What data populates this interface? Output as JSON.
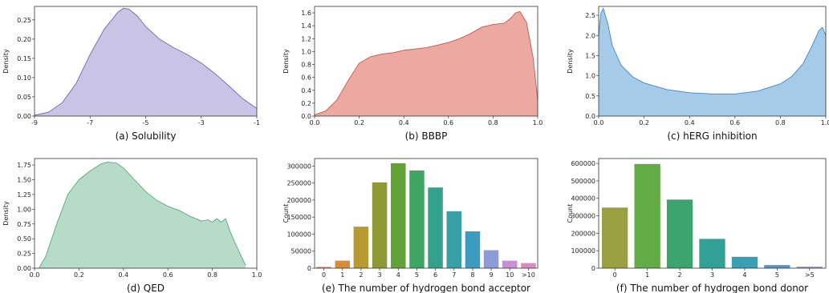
{
  "chart_data": [
    {
      "type": "area",
      "caption": "(a) Solubility",
      "ylabel": "Density",
      "xlim": [
        -9,
        -1
      ],
      "ylim": [
        0,
        0.285
      ],
      "xticks": [
        -9,
        -7,
        -5,
        -3,
        -1
      ],
      "yticks": [
        0.0,
        0.05,
        0.1,
        0.15,
        0.2,
        0.25
      ],
      "ytick_labels": [
        "0.00",
        "0.05",
        "0.10",
        "0.15",
        "0.20",
        "0.25"
      ],
      "fill": "#c9c4e6",
      "stroke": "#7466ae",
      "x": [
        -9,
        -8.5,
        -8,
        -7.5,
        -7,
        -6.5,
        -6,
        -5.8,
        -5.6,
        -5.3,
        -5,
        -4.5,
        -4,
        -3.5,
        -3,
        -2.5,
        -2,
        -1.5,
        -1
      ],
      "y": [
        0.002,
        0.01,
        0.035,
        0.085,
        0.16,
        0.225,
        0.27,
        0.28,
        0.278,
        0.26,
        0.233,
        0.2,
        0.178,
        0.16,
        0.138,
        0.11,
        0.078,
        0.045,
        0.02
      ]
    },
    {
      "type": "area",
      "caption": "(b) BBBP",
      "ylabel": "Density",
      "xlim": [
        0,
        1
      ],
      "ylim": [
        0,
        1.7
      ],
      "xticks": [
        0.0,
        0.2,
        0.4,
        0.6,
        0.8,
        1.0
      ],
      "xtick_labels": [
        "0.0",
        "0.2",
        "0.4",
        "0.6",
        "0.8",
        "1.0"
      ],
      "yticks": [
        0.0,
        0.2,
        0.4,
        0.6,
        0.8,
        1.0,
        1.2,
        1.4,
        1.6
      ],
      "ytick_labels": [
        "0.0",
        "0.2",
        "0.4",
        "0.6",
        "0.8",
        "1.0",
        "1.2",
        "1.4",
        "1.6"
      ],
      "fill": "#eba9a2",
      "stroke": "#c6584c",
      "x": [
        0,
        0.05,
        0.1,
        0.15,
        0.2,
        0.25,
        0.3,
        0.35,
        0.4,
        0.45,
        0.5,
        0.55,
        0.6,
        0.65,
        0.7,
        0.75,
        0.8,
        0.85,
        0.88,
        0.9,
        0.92,
        0.95,
        0.98,
        1.0
      ],
      "y": [
        0.02,
        0.08,
        0.25,
        0.55,
        0.82,
        0.92,
        0.96,
        0.98,
        1.02,
        1.04,
        1.06,
        1.1,
        1.14,
        1.2,
        1.28,
        1.38,
        1.42,
        1.44,
        1.52,
        1.6,
        1.62,
        1.45,
        0.9,
        0.25
      ]
    },
    {
      "type": "area",
      "caption": "(c) hERG inhibition",
      "ylabel": "Density",
      "xlim": [
        0,
        1
      ],
      "ylim": [
        0,
        2.72
      ],
      "xticks": [
        0.0,
        0.2,
        0.4,
        0.6,
        0.8,
        1.0
      ],
      "xtick_labels": [
        "0.0",
        "0.2",
        "0.4",
        "0.6",
        "0.8",
        "1.0"
      ],
      "yticks": [
        0.0,
        0.5,
        1.0,
        1.5,
        2.0,
        2.5
      ],
      "ytick_labels": [
        "0.0",
        "0.5",
        "1.0",
        "1.5",
        "2.0",
        "2.5"
      ],
      "fill": "#a5cbe8",
      "stroke": "#3f88c5",
      "x": [
        0,
        0.01,
        0.02,
        0.04,
        0.06,
        0.1,
        0.15,
        0.2,
        0.3,
        0.4,
        0.5,
        0.6,
        0.7,
        0.8,
        0.85,
        0.9,
        0.94,
        0.97,
        0.985,
        1.0
      ],
      "y": [
        2.0,
        2.55,
        2.67,
        2.3,
        1.75,
        1.25,
        0.97,
        0.82,
        0.66,
        0.58,
        0.55,
        0.55,
        0.62,
        0.8,
        0.98,
        1.3,
        1.75,
        2.12,
        2.2,
        2.0
      ]
    },
    {
      "type": "area",
      "caption": "(d) QED",
      "ylabel": "Density",
      "xlim": [
        0,
        1
      ],
      "ylim": [
        0,
        1.86
      ],
      "xticks": [
        0.0,
        0.2,
        0.4,
        0.6,
        0.8,
        1.0
      ],
      "xtick_labels": [
        "0.0",
        "0.2",
        "0.4",
        "0.6",
        "0.8",
        "1.0"
      ],
      "yticks": [
        0.0,
        0.25,
        0.5,
        0.75,
        1.0,
        1.25,
        1.5,
        1.75
      ],
      "ytick_labels": [
        "0.00",
        "0.25",
        "0.50",
        "0.75",
        "1.00",
        "1.25",
        "1.50",
        "1.75"
      ],
      "fill": "#b6dcc9",
      "stroke": "#58a982",
      "x": [
        0.02,
        0.05,
        0.1,
        0.15,
        0.2,
        0.25,
        0.3,
        0.33,
        0.37,
        0.4,
        0.45,
        0.5,
        0.55,
        0.6,
        0.65,
        0.7,
        0.75,
        0.78,
        0.8,
        0.82,
        0.84,
        0.86,
        0.88,
        0.9,
        0.93,
        0.95
      ],
      "y": [
        0.0,
        0.2,
        0.75,
        1.25,
        1.5,
        1.65,
        1.77,
        1.8,
        1.78,
        1.7,
        1.5,
        1.3,
        1.15,
        1.05,
        0.98,
        0.88,
        0.8,
        0.82,
        0.78,
        0.84,
        0.78,
        0.84,
        0.62,
        0.45,
        0.2,
        0.05
      ]
    },
    {
      "type": "bar",
      "caption": "(e) The number of hydrogen bond acceptor",
      "ylabel": "Count",
      "categories": [
        "0",
        "1",
        "2",
        "3",
        "4",
        "5",
        "6",
        "7",
        "8",
        "9",
        "10",
        ">10"
      ],
      "values": [
        4000,
        22000,
        122000,
        252000,
        308000,
        287000,
        237000,
        167000,
        108000,
        53000,
        22000,
        15000
      ],
      "ylim": [
        0,
        322000
      ],
      "yticks": [
        0,
        50000,
        100000,
        150000,
        200000,
        250000,
        300000
      ],
      "ytick_labels": [
        "0",
        "50000",
        "100000",
        "150000",
        "200000",
        "250000",
        "300000"
      ],
      "colors": [
        "#e48b80",
        "#d88b3a",
        "#b89a30",
        "#8f9a34",
        "#62a236",
        "#3fa562",
        "#34a18c",
        "#36a0a6",
        "#3e9bc0",
        "#8d9bd6",
        "#c88fd6",
        "#df89bd"
      ]
    },
    {
      "type": "bar",
      "caption": "(f) The number of hydrogen bond donor",
      "ylabel": "Count",
      "categories": [
        "0",
        "1",
        "2",
        "3",
        "4",
        "5",
        ">5"
      ],
      "values": [
        347000,
        597000,
        393000,
        168000,
        65000,
        18000,
        9000
      ],
      "ylim": [
        0,
        628000
      ],
      "yticks": [
        0,
        100000,
        200000,
        300000,
        400000,
        500000,
        600000
      ],
      "ytick_labels": [
        "0",
        "100000",
        "200000",
        "300000",
        "400000",
        "500000",
        "600000"
      ],
      "colors": [
        "#9aa040",
        "#63ac45",
        "#3ca46e",
        "#33a096",
        "#37a0b2",
        "#4f97c9",
        "#a395d8"
      ]
    }
  ]
}
